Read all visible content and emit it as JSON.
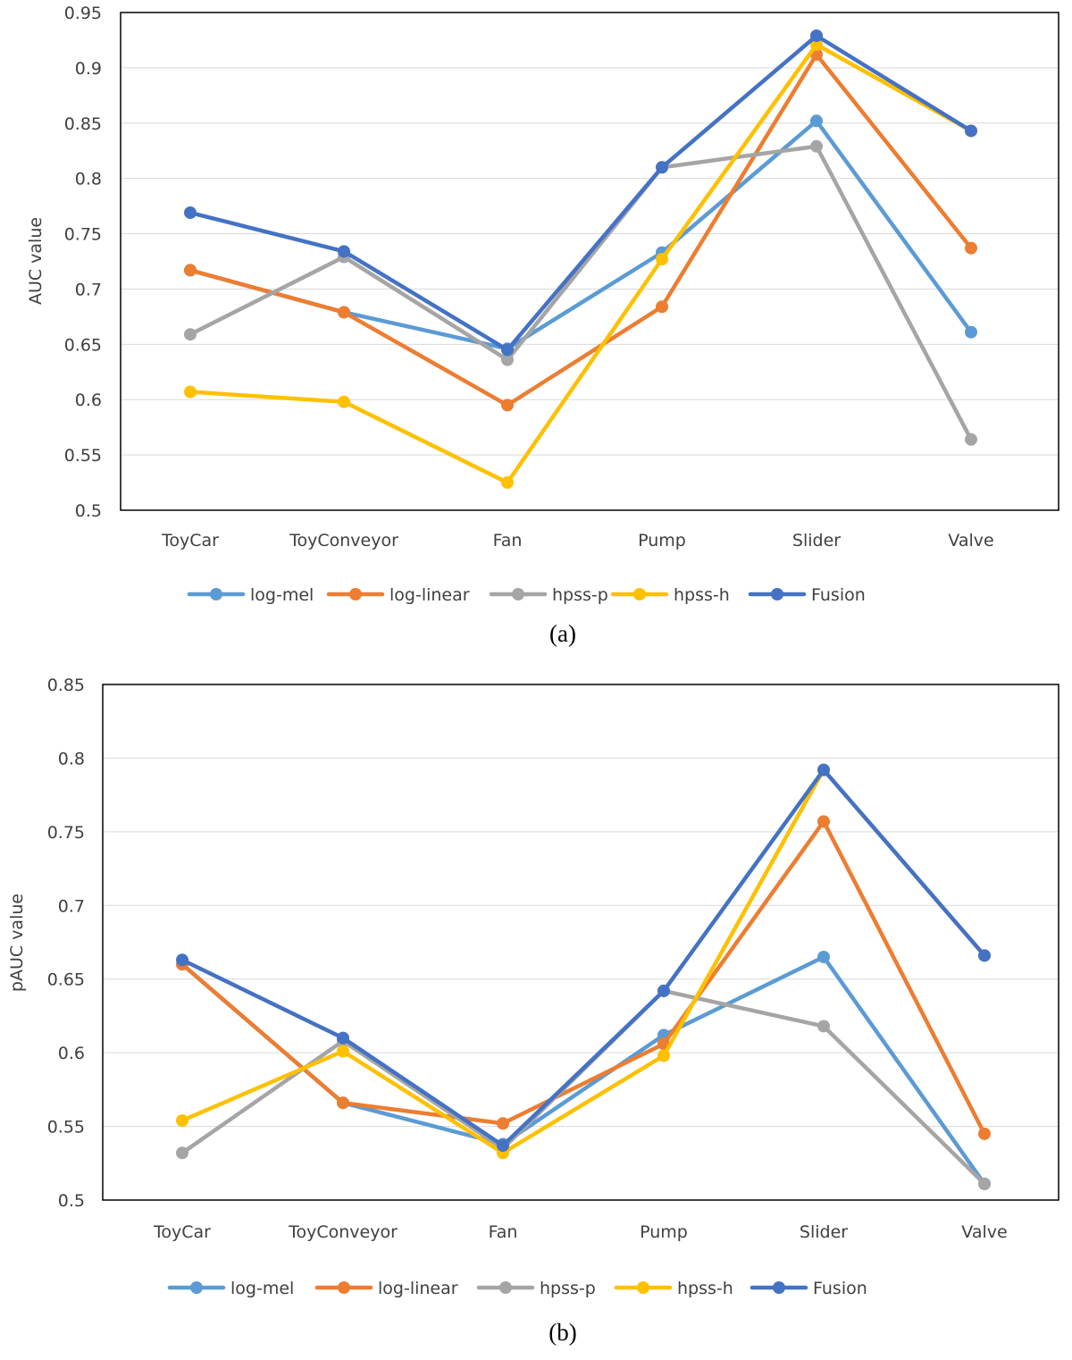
{
  "chart_data": [
    {
      "type": "line",
      "caption": "(a)",
      "ylabel": "AUC value",
      "xlabel": "",
      "ylim": [
        0.5,
        0.95
      ],
      "yticks": [
        "0.5",
        "0.55",
        "0.6",
        "0.65",
        "0.7",
        "0.75",
        "0.8",
        "0.85",
        "0.9",
        "0.95"
      ],
      "grid": true,
      "legend_position": "bottom",
      "categories": [
        "ToyCar",
        "ToyConveyor",
        "Fan",
        "Pump",
        "Slider",
        "Valve"
      ],
      "series": [
        {
          "name": "log-mel",
          "color": "#5b9bd5",
          "values": [
            0.717,
            0.679,
            0.646,
            0.733,
            0.852,
            0.661
          ]
        },
        {
          "name": "log-linear",
          "color": "#ed7d31",
          "values": [
            0.717,
            0.679,
            0.595,
            0.684,
            0.912,
            0.737
          ]
        },
        {
          "name": "hpss-p",
          "color": "#a5a5a5",
          "values": [
            0.659,
            0.729,
            0.636,
            0.81,
            0.829,
            0.564
          ]
        },
        {
          "name": "hpss-h",
          "color": "#ffc000",
          "values": [
            0.607,
            0.598,
            0.525,
            0.727,
            0.921,
            0.843
          ]
        },
        {
          "name": "Fusion",
          "color": "#4472c4",
          "values": [
            0.769,
            0.734,
            0.645,
            0.81,
            0.929,
            0.843
          ]
        }
      ]
    },
    {
      "type": "line",
      "caption": "(b)",
      "ylabel": "pAUC value",
      "xlabel": "",
      "ylim": [
        0.5,
        0.85
      ],
      "yticks": [
        "0.5",
        "0.55",
        "0.6",
        "0.65",
        "0.7",
        "0.75",
        "0.8",
        "0.85"
      ],
      "grid": true,
      "legend_position": "bottom",
      "categories": [
        "ToyCar",
        "ToyConveyor",
        "Fan",
        "Pump",
        "Slider",
        "Valve"
      ],
      "series": [
        {
          "name": "log-mel",
          "color": "#5b9bd5",
          "values": [
            0.66,
            0.566,
            0.538,
            0.612,
            0.665,
            0.511
          ]
        },
        {
          "name": "log-linear",
          "color": "#ed7d31",
          "values": [
            0.66,
            0.566,
            0.552,
            0.606,
            0.757,
            0.545
          ]
        },
        {
          "name": "hpss-p",
          "color": "#a5a5a5",
          "values": [
            0.532,
            0.608,
            0.535,
            0.642,
            0.618,
            0.511
          ]
        },
        {
          "name": "hpss-h",
          "color": "#ffc000",
          "values": [
            0.554,
            0.601,
            0.532,
            0.598,
            0.792,
            0.666
          ]
        },
        {
          "name": "Fusion",
          "color": "#4472c4",
          "values": [
            0.663,
            0.61,
            0.537,
            0.642,
            0.792,
            0.666
          ]
        }
      ]
    }
  ]
}
